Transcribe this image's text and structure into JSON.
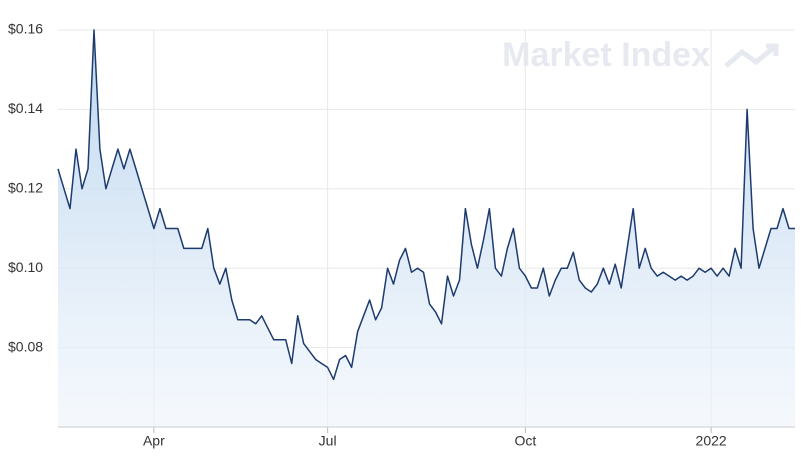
{
  "chart_data": {
    "type": "area",
    "watermark": "Market Index",
    "categories": [
      null,
      null,
      null,
      null,
      null,
      null,
      null,
      null,
      null,
      null,
      null,
      null,
      null,
      null,
      null,
      null,
      "Apr",
      null,
      null,
      null,
      null,
      null,
      null,
      null,
      null,
      null,
      null,
      null,
      null,
      null,
      null,
      null,
      null,
      null,
      null,
      null,
      null,
      null,
      null,
      null,
      null,
      null,
      null,
      null,
      null,
      "Jul",
      null,
      null,
      null,
      null,
      null,
      null,
      null,
      null,
      null,
      null,
      null,
      null,
      null,
      null,
      null,
      null,
      null,
      null,
      null,
      null,
      null,
      null,
      null,
      null,
      null,
      null,
      null,
      null,
      null,
      null,
      null,
      null,
      "Oct",
      null,
      null,
      null,
      null,
      null,
      null,
      null,
      null,
      null,
      null,
      null,
      null,
      null,
      null,
      null,
      null,
      null,
      null,
      null,
      null,
      null,
      null,
      null,
      null,
      null,
      null,
      null,
      null,
      null,
      null,
      "2022",
      null,
      null,
      null,
      null,
      null,
      null,
      null,
      null,
      null,
      null,
      null,
      null,
      null,
      null
    ],
    "values": [
      0.125,
      0.12,
      0.115,
      0.13,
      0.12,
      0.125,
      0.16,
      0.13,
      0.12,
      0.125,
      0.13,
      0.125,
      0.13,
      0.125,
      0.12,
      0.115,
      0.11,
      0.115,
      0.11,
      0.11,
      0.11,
      0.105,
      0.105,
      0.105,
      0.105,
      0.11,
      0.1,
      0.096,
      0.1,
      0.092,
      0.087,
      0.087,
      0.087,
      0.086,
      0.088,
      0.085,
      0.082,
      0.082,
      0.082,
      0.076,
      0.088,
      0.081,
      0.079,
      0.077,
      0.076,
      0.075,
      0.072,
      0.077,
      0.078,
      0.075,
      0.084,
      0.088,
      0.092,
      0.087,
      0.09,
      0.1,
      0.096,
      0.102,
      0.105,
      0.099,
      0.1,
      0.099,
      0.091,
      0.089,
      0.086,
      0.098,
      0.093,
      0.097,
      0.115,
      0.106,
      0.1,
      0.107,
      0.115,
      0.1,
      0.098,
      0.105,
      0.11,
      0.1,
      0.098,
      0.095,
      0.095,
      0.1,
      0.093,
      0.097,
      0.1,
      0.1,
      0.104,
      0.097,
      0.095,
      0.094,
      0.096,
      0.1,
      0.096,
      0.101,
      0.095,
      0.105,
      0.115,
      0.1,
      0.105,
      0.1,
      0.098,
      0.099,
      0.098,
      0.097,
      0.098,
      0.097,
      0.098,
      0.1,
      0.099,
      0.1,
      0.098,
      0.1,
      0.098,
      0.105,
      0.1,
      0.14,
      0.11,
      0.1,
      0.105,
      0.11,
      0.11,
      0.115,
      0.11,
      0.11
    ],
    "color": "#1d3b6e",
    "ylim": [
      0.06,
      0.16
    ],
    "yticks": [
      {
        "value": 0.08,
        "label": "$0.08"
      },
      {
        "value": 0.1,
        "label": "$0.10"
      },
      {
        "value": 0.12,
        "label": "$0.12"
      },
      {
        "value": 0.14,
        "label": "$0.14"
      },
      {
        "value": 0.16,
        "label": "$0.16"
      }
    ],
    "grid": true
  }
}
